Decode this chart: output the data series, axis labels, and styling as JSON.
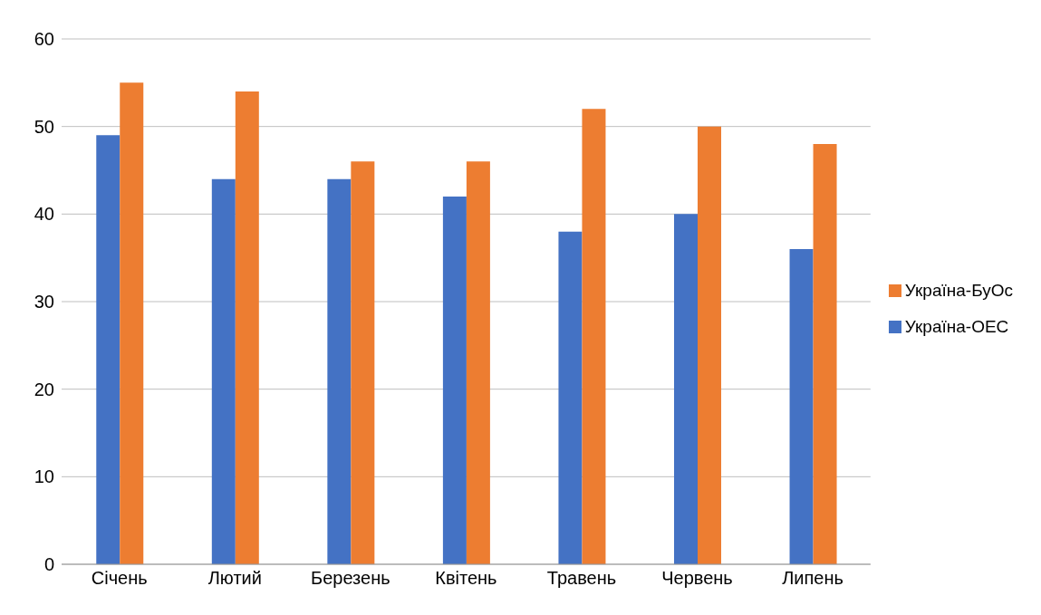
{
  "chart_data": {
    "type": "bar",
    "categories": [
      "Січень",
      "Лютий",
      "Березень",
      "Квітень",
      "Травень",
      "Червень",
      "Липень"
    ],
    "series": [
      {
        "name": "Україна-ОЕС",
        "color": "#4472c4",
        "values": [
          49,
          44,
          44,
          42,
          38,
          40,
          36
        ]
      },
      {
        "name": "Україна-БуОс",
        "color": "#ed7d31",
        "values": [
          55,
          54,
          46,
          46,
          52,
          50,
          48
        ]
      }
    ],
    "ylim": [
      0,
      60
    ],
    "yticks": [
      0,
      10,
      20,
      30,
      40,
      50,
      60
    ],
    "grid": "y",
    "legend": "right"
  }
}
